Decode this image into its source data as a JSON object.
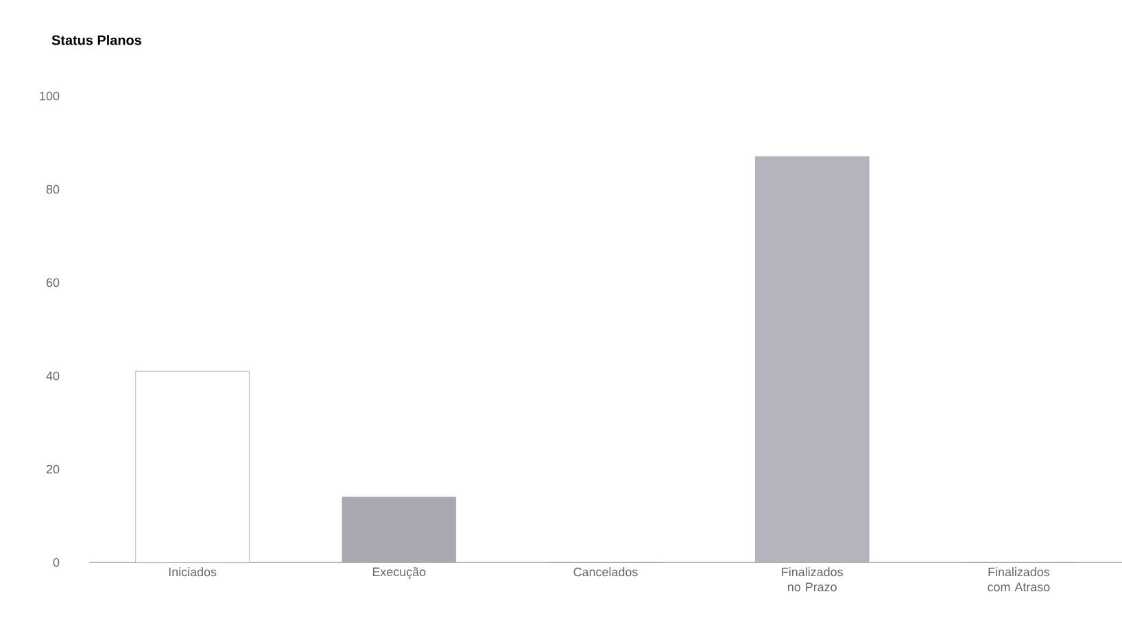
{
  "chart_data": {
    "type": "bar",
    "title": "Status Planos",
    "categories": [
      "Iniciados",
      "Execução",
      "Cancelados",
      "Finalizados no Prazo",
      "Finalizados com Atraso"
    ],
    "values": [
      41,
      14,
      0,
      87,
      0
    ],
    "colors": [
      "#ffffff",
      "#a9a9b4",
      "#a9a9b4",
      "#b4b4be",
      "#b4b4be"
    ],
    "ylim": [
      0,
      100
    ],
    "yticks": [
      0,
      20,
      40,
      60,
      80,
      100
    ]
  }
}
